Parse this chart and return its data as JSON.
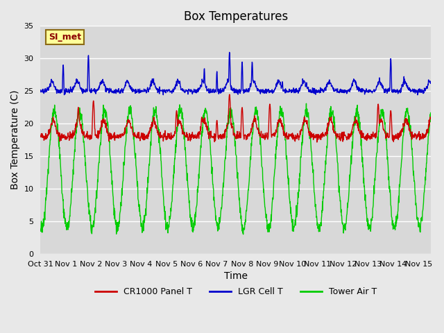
{
  "title": "Box Temperatures",
  "xlabel": "Time",
  "ylabel": "Box Temperature (C)",
  "ylim": [
    0,
    35
  ],
  "yticks": [
    0,
    5,
    10,
    15,
    20,
    25,
    30,
    35
  ],
  "xlim": [
    0,
    15.5
  ],
  "xtick_labels": [
    "Oct 31",
    "Nov 1",
    "Nov 2",
    "Nov 3",
    "Nov 4",
    "Nov 5",
    "Nov 6",
    "Nov 7",
    "Nov 8",
    "Nov 9",
    "Nov 10",
    "Nov 11",
    "Nov 12",
    "Nov 13",
    "Nov 14",
    "Nov 15"
  ],
  "xtick_positions": [
    0,
    1,
    2,
    3,
    4,
    5,
    6,
    7,
    8,
    9,
    10,
    11,
    12,
    13,
    14,
    15
  ],
  "bg_color": "#e8e8e8",
  "plot_bg_color": "#d8d8d8",
  "grid_color": "#ffffff",
  "annotation_text": "SI_met",
  "annotation_color": "#8b0000",
  "annotation_bg": "#ffff99",
  "cr1000_color": "#cc0000",
  "lgr_color": "#0000cc",
  "tower_color": "#00cc00",
  "legend_dash_cr1000": "#cc0000",
  "legend_dash_lgr": "#0000cc",
  "legend_dash_tower": "#00cc00"
}
